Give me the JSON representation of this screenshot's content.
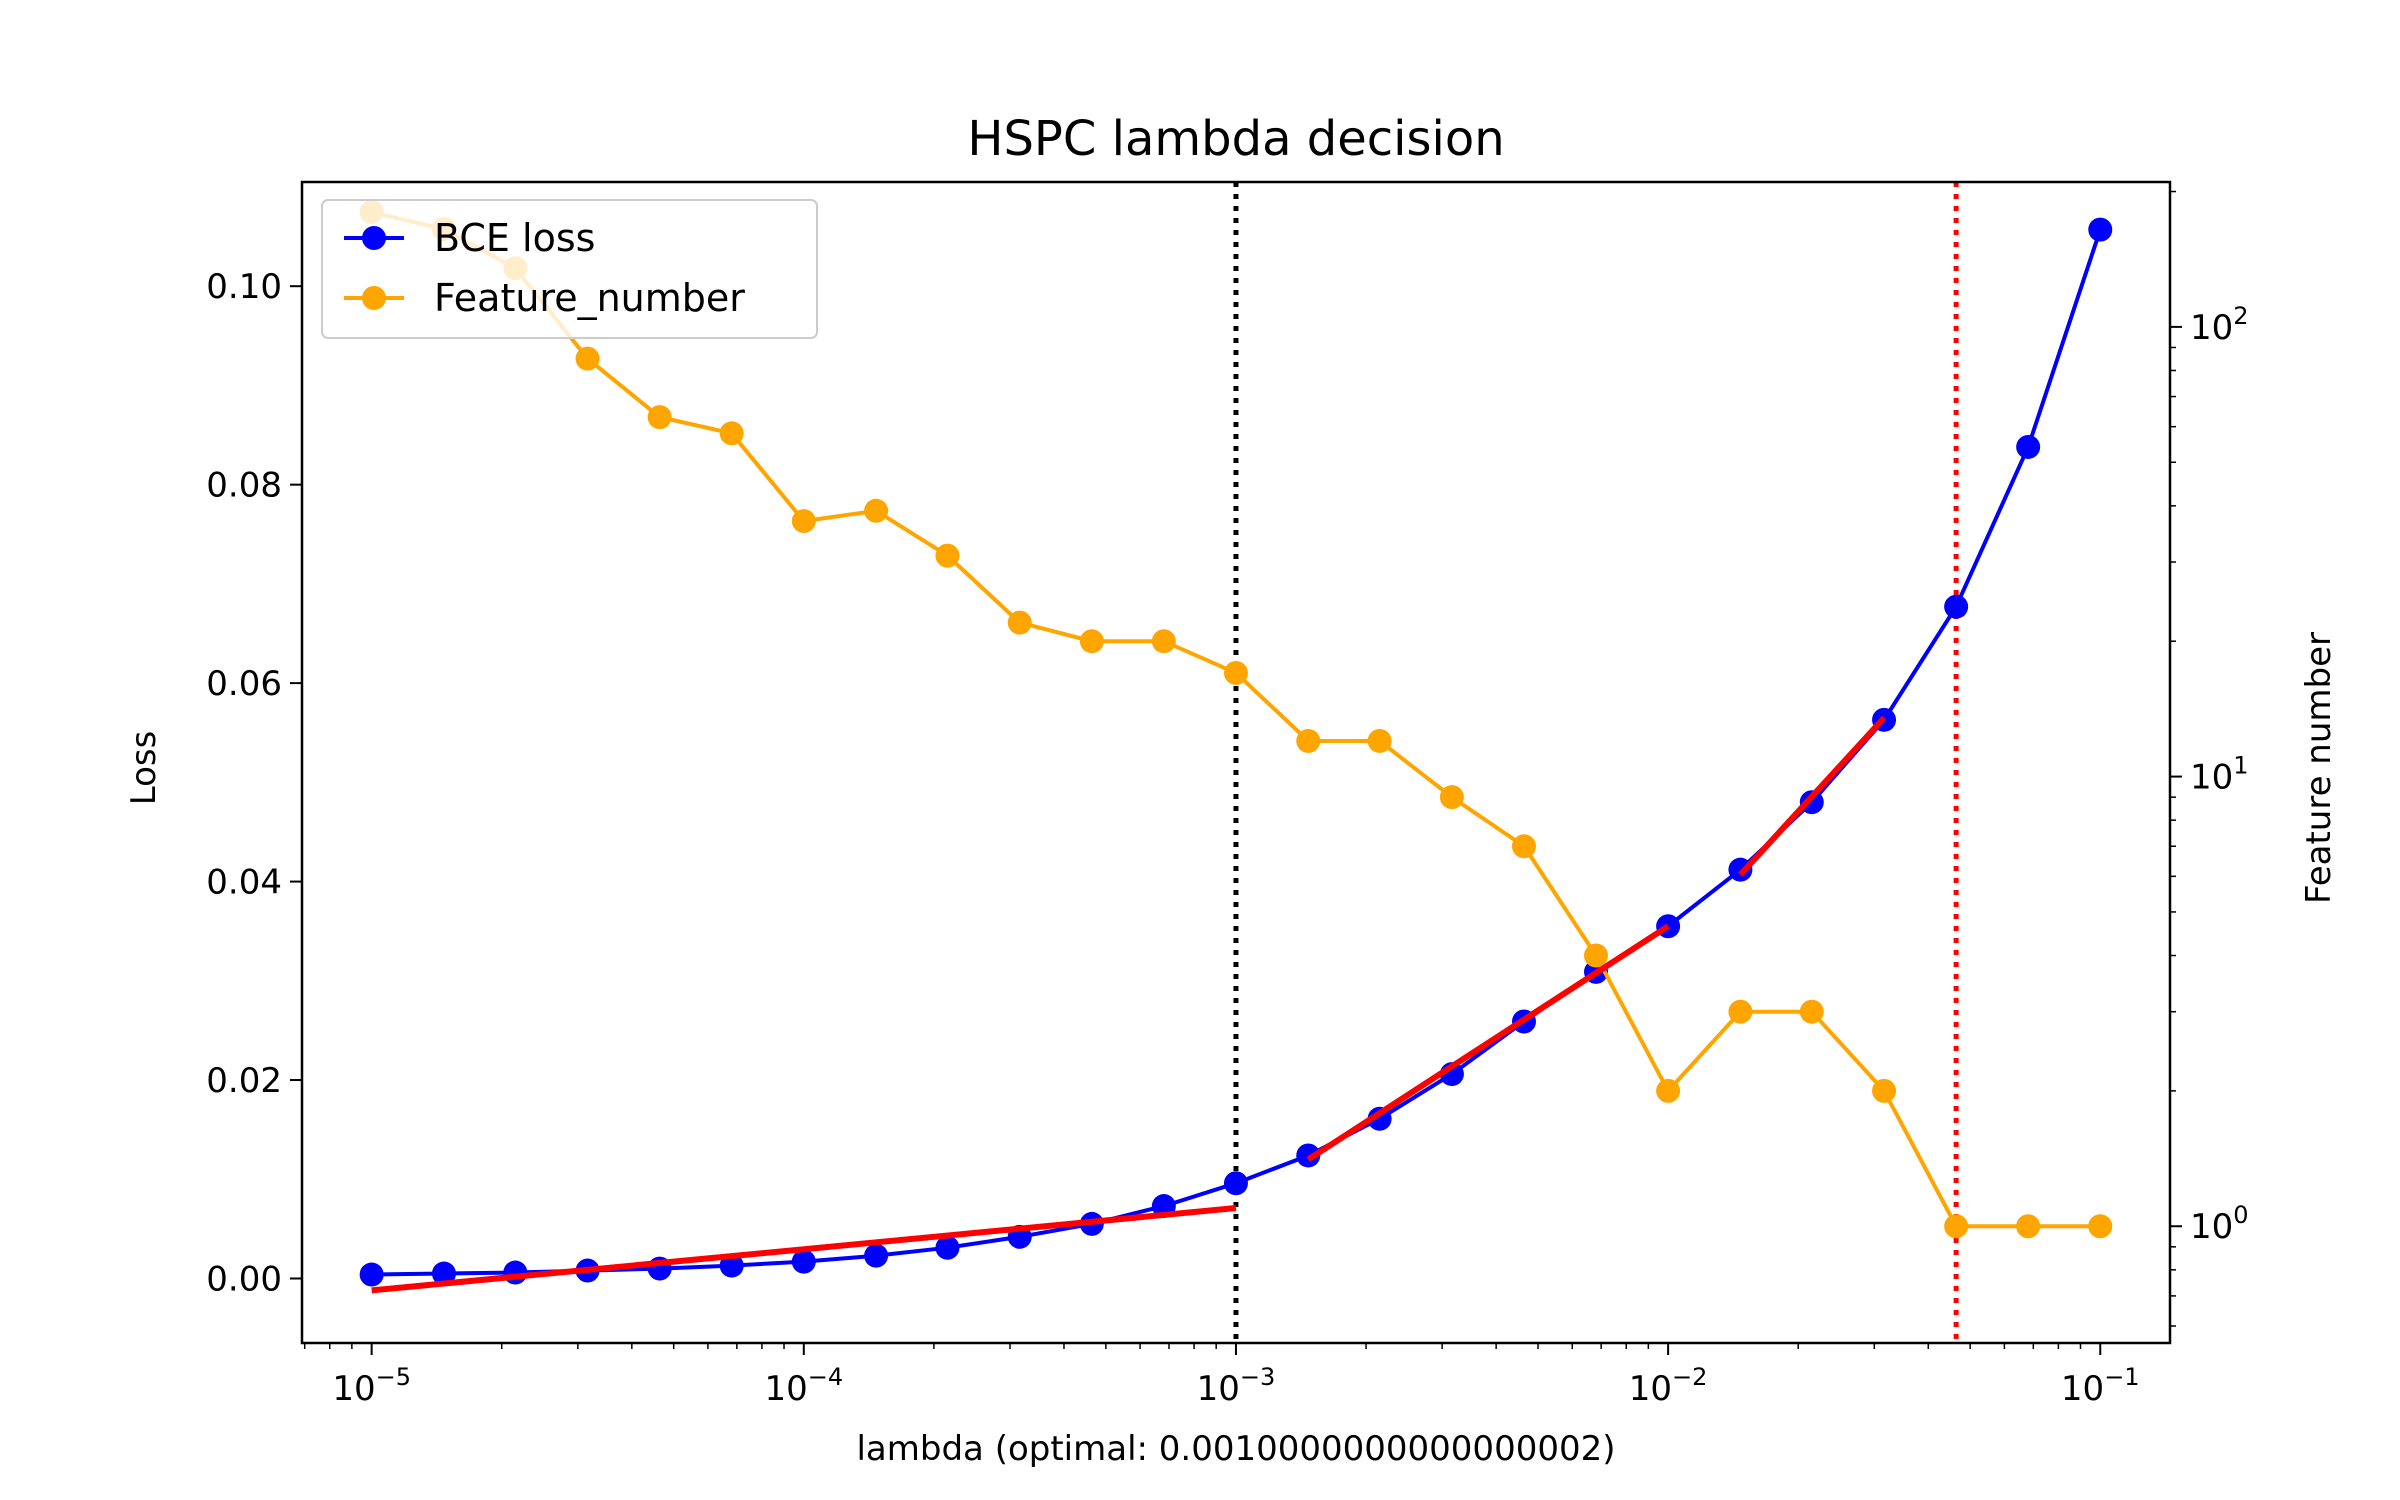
{
  "chart_data": {
    "type": "line",
    "title": "HSPC lambda decision",
    "xlabel": "lambda (optimal: 0.0010000000000000002)",
    "ylabel": "Loss",
    "ylabel_right": "Feature number",
    "xscale": "log",
    "xlim": [
      6.9e-06,
      0.145
    ],
    "ylim": [
      -0.0065,
      0.1105
    ],
    "ylim_right": [
      0.55,
      210
    ],
    "yscale_right": "log",
    "grid": false,
    "legend_position": "top-left",
    "x_ticks": [
      {
        "value": 1e-05,
        "base": "10",
        "exp": "−5"
      },
      {
        "value": 0.0001,
        "base": "10",
        "exp": "−4"
      },
      {
        "value": 0.001,
        "base": "10",
        "exp": "−3"
      },
      {
        "value": 0.01,
        "base": "10",
        "exp": "−2"
      },
      {
        "value": 0.1,
        "base": "10",
        "exp": "−1"
      }
    ],
    "y_ticks": [
      {
        "value": 0.0,
        "label": "0.00"
      },
      {
        "value": 0.02,
        "label": "0.02"
      },
      {
        "value": 0.04,
        "label": "0.04"
      },
      {
        "value": 0.06,
        "label": "0.06"
      },
      {
        "value": 0.08,
        "label": "0.08"
      },
      {
        "value": 0.1,
        "label": "0.10"
      }
    ],
    "y_ticks_right": [
      {
        "value": 1,
        "base": "10",
        "exp": "0"
      },
      {
        "value": 10,
        "base": "10",
        "exp": "1"
      },
      {
        "value": 100,
        "base": "10",
        "exp": "2"
      }
    ],
    "x": [
      1e-05,
      1.47e-05,
      2.15e-05,
      3.16e-05,
      4.64e-05,
      6.81e-05,
      0.0001,
      0.000147,
      0.000215,
      0.000316,
      0.000464,
      0.000681,
      0.001,
      0.00147,
      0.00215,
      0.00316,
      0.00464,
      0.00681,
      0.01,
      0.0147,
      0.0215,
      0.0316,
      0.0464,
      0.0681,
      0.1
    ],
    "series": [
      {
        "name": "BCE loss",
        "axis": "left",
        "color": "#0000ff",
        "values": [
          0.0004,
          0.0005,
          0.0006,
          0.0008,
          0.001,
          0.0013,
          0.0017,
          0.0023,
          0.0031,
          0.0042,
          0.0055,
          0.0073,
          0.0096,
          0.0124,
          0.0161,
          0.0206,
          0.0259,
          0.0309,
          0.0355,
          0.0412,
          0.048,
          0.0563,
          0.0677,
          0.0838,
          0.1057
        ]
      },
      {
        "name": "Feature_number",
        "axis": "right",
        "color": "#ffa500",
        "values": [
          180,
          165,
          135,
          85,
          63,
          58,
          37,
          39,
          31,
          22,
          20,
          20,
          17,
          12,
          12,
          9,
          7,
          4,
          2,
          3,
          3,
          2,
          1,
          1,
          1
        ]
      }
    ],
    "fit_lines": [
      {
        "color": "#ff0000",
        "x": [
          1e-05,
          0.001
        ],
        "y": [
          -0.0012,
          0.0071
        ]
      },
      {
        "color": "#ff0000",
        "x": [
          0.00147,
          0.01
        ],
        "y": [
          0.012,
          0.0355
        ]
      },
      {
        "color": "#ff0000",
        "x": [
          0.0147,
          0.0316
        ],
        "y": [
          0.0407,
          0.0565
        ]
      }
    ],
    "vlines": [
      {
        "x": 0.001,
        "color": "#000000",
        "style": "dotted"
      },
      {
        "x": 0.0464,
        "color": "#ff0000",
        "style": "dotted"
      }
    ]
  }
}
